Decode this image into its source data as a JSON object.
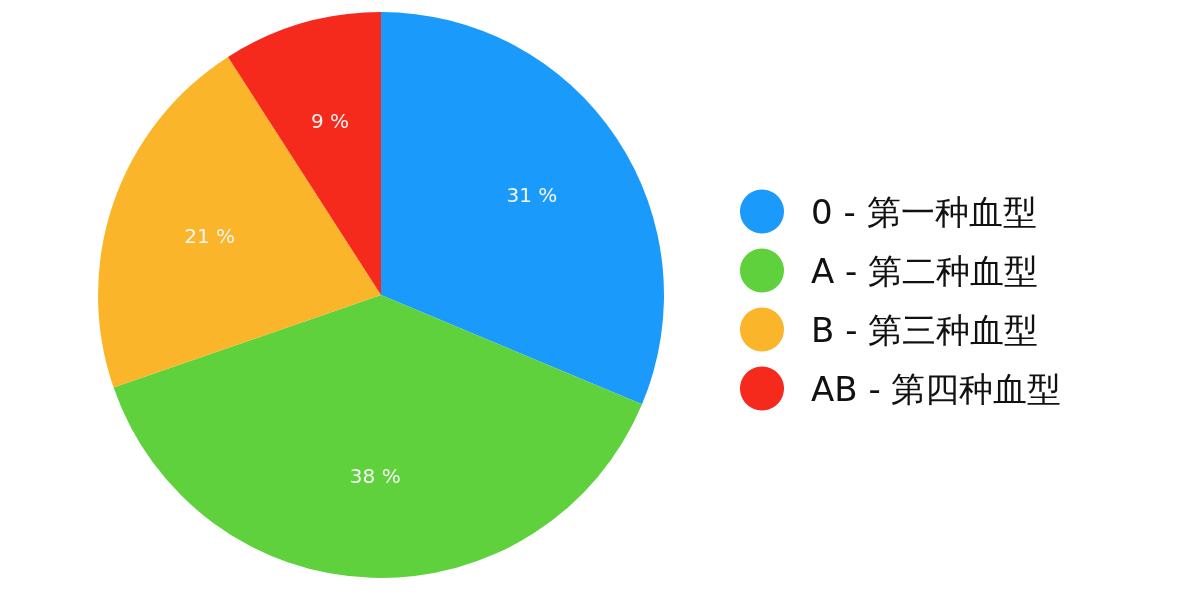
{
  "chart_data": {
    "type": "pie",
    "categories": [
      "0 - 第一种血型",
      "A - 第二种血型",
      "B - 第三种血型",
      "AB - 第四种血型"
    ],
    "values": [
      31,
      38,
      21,
      9
    ],
    "colors": [
      "#1a9bfc",
      "#5ed13d",
      "#fbb52a",
      "#f5291c"
    ],
    "value_labels": [
      "31 %",
      "38 %",
      "21 %",
      "9 %"
    ],
    "legend": "right"
  }
}
